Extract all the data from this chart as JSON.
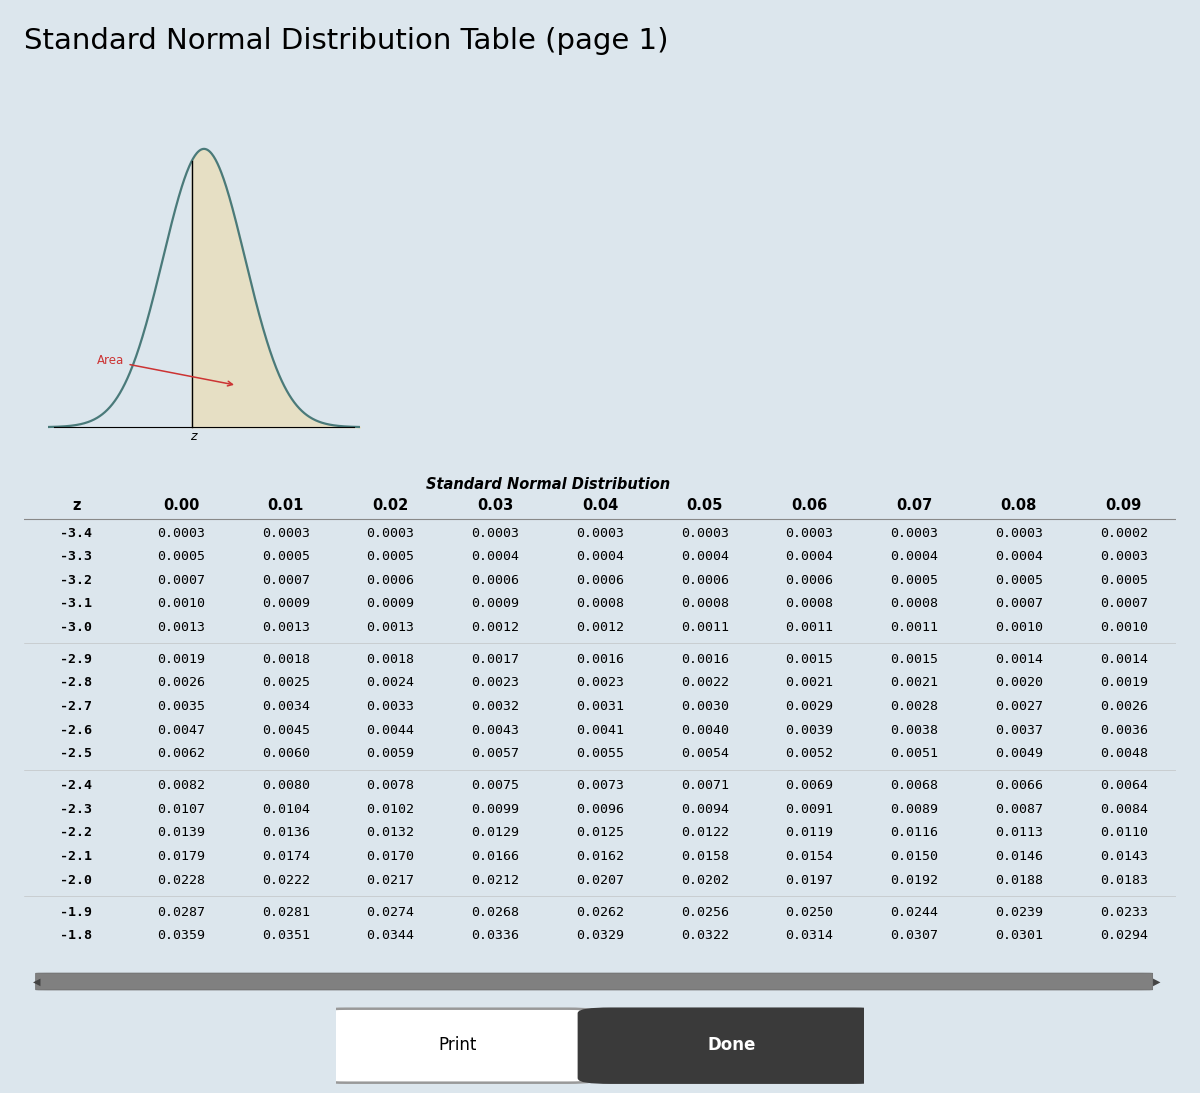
{
  "title": "Standard Normal Distribution Table (page 1)",
  "table_header_label": "Standard Normal Distribution",
  "col_headers": [
    "z",
    "0.00",
    "0.01",
    "0.02",
    "0.03",
    "0.04",
    "0.05",
    "0.06",
    "0.07",
    "0.08",
    "0.09"
  ],
  "rows": [
    [
      "-3.4",
      "0.0003",
      "0.0003",
      "0.0003",
      "0.0003",
      "0.0003",
      "0.0003",
      "0.0003",
      "0.0003",
      "0.0003",
      "0.0002"
    ],
    [
      "-3.3",
      "0.0005",
      "0.0005",
      "0.0005",
      "0.0004",
      "0.0004",
      "0.0004",
      "0.0004",
      "0.0004",
      "0.0004",
      "0.0003"
    ],
    [
      "-3.2",
      "0.0007",
      "0.0007",
      "0.0006",
      "0.0006",
      "0.0006",
      "0.0006",
      "0.0006",
      "0.0005",
      "0.0005",
      "0.0005"
    ],
    [
      "-3.1",
      "0.0010",
      "0.0009",
      "0.0009",
      "0.0009",
      "0.0008",
      "0.0008",
      "0.0008",
      "0.0008",
      "0.0007",
      "0.0007"
    ],
    [
      "-3.0",
      "0.0013",
      "0.0013",
      "0.0013",
      "0.0012",
      "0.0012",
      "0.0011",
      "0.0011",
      "0.0011",
      "0.0010",
      "0.0010"
    ],
    [
      "-2.9",
      "0.0019",
      "0.0018",
      "0.0018",
      "0.0017",
      "0.0016",
      "0.0016",
      "0.0015",
      "0.0015",
      "0.0014",
      "0.0014"
    ],
    [
      "-2.8",
      "0.0026",
      "0.0025",
      "0.0024",
      "0.0023",
      "0.0023",
      "0.0022",
      "0.0021",
      "0.0021",
      "0.0020",
      "0.0019"
    ],
    [
      "-2.7",
      "0.0035",
      "0.0034",
      "0.0033",
      "0.0032",
      "0.0031",
      "0.0030",
      "0.0029",
      "0.0028",
      "0.0027",
      "0.0026"
    ],
    [
      "-2.6",
      "0.0047",
      "0.0045",
      "0.0044",
      "0.0043",
      "0.0041",
      "0.0040",
      "0.0039",
      "0.0038",
      "0.0037",
      "0.0036"
    ],
    [
      "-2.5",
      "0.0062",
      "0.0060",
      "0.0059",
      "0.0057",
      "0.0055",
      "0.0054",
      "0.0052",
      "0.0051",
      "0.0049",
      "0.0048"
    ],
    [
      "-2.4",
      "0.0082",
      "0.0080",
      "0.0078",
      "0.0075",
      "0.0073",
      "0.0071",
      "0.0069",
      "0.0068",
      "0.0066",
      "0.0064"
    ],
    [
      "-2.3",
      "0.0107",
      "0.0104",
      "0.0102",
      "0.0099",
      "0.0096",
      "0.0094",
      "0.0091",
      "0.0089",
      "0.0087",
      "0.0084"
    ],
    [
      "-2.2",
      "0.0139",
      "0.0136",
      "0.0132",
      "0.0129",
      "0.0125",
      "0.0122",
      "0.0119",
      "0.0116",
      "0.0113",
      "0.0110"
    ],
    [
      "-2.1",
      "0.0179",
      "0.0174",
      "0.0170",
      "0.0166",
      "0.0162",
      "0.0158",
      "0.0154",
      "0.0150",
      "0.0146",
      "0.0143"
    ],
    [
      "-2.0",
      "0.0228",
      "0.0222",
      "0.0217",
      "0.0212",
      "0.0207",
      "0.0202",
      "0.0197",
      "0.0192",
      "0.0188",
      "0.0183"
    ],
    [
      "-1.9",
      "0.0287",
      "0.0281",
      "0.0274",
      "0.0268",
      "0.0262",
      "0.0256",
      "0.0250",
      "0.0244",
      "0.0239",
      "0.0233"
    ],
    [
      "-1.8",
      "0.0359",
      "0.0351",
      "0.0344",
      "0.0336",
      "0.0329",
      "0.0322",
      "0.0314",
      "0.0307",
      "0.0301",
      "0.0294"
    ]
  ],
  "group_breaks": [
    5,
    10,
    15
  ],
  "outer_bg": "#dce6ed",
  "inner_bg": "#f0ebe4",
  "curve_fill_color": "#e8dfc0",
  "curve_line_color": "#4a7a7a",
  "area_label_color": "#cc3333",
  "print_btn_edge": "#888888",
  "done_btn_bg": "#3a3a3a",
  "scrollbar_bg": "#a0a0a0",
  "scrollbar_handle": "#808080"
}
